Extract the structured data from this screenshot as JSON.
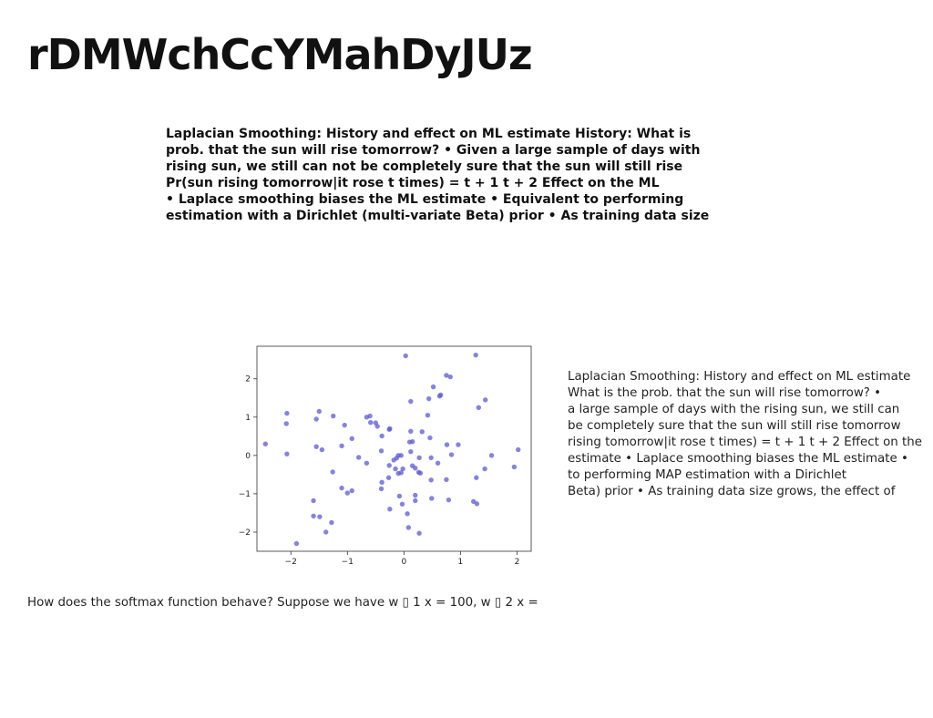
{
  "page": {
    "title": "rDMWchCcYMahDyJUz",
    "bold_lines": [
      "Laplacian Smoothing: History and effect on ML estimate History: What is",
      "prob. that the sun will rise tomorrow? • Given a large sample of days with",
      "rising sun, we still can not be completely sure that the sun will still rise",
      "Pr(sun rising tomorrow|it rose t times) = t + 1 t + 2 Effect on the ML",
      "• Laplace smoothing biases the ML estimate • Equivalent to performing",
      "estimation with a Dirichlet (multi-variate Beta) prior • As training data size"
    ],
    "side_lines": [
      "Laplacian Smoothing: History and effect on ML estimate",
      "What is the prob. that the sun will rise tomorrow? •",
      "a large sample of days with the rising sun, we still can",
      "be completely sure that the sun will still rise tomorrow",
      "rising tomorrow|it rose t times) = t + 1 t + 2 Effect on the",
      "estimate • Laplace smoothing biases the ML estimate •",
      "to performing MAP estimation with a Dirichlet",
      "Beta) prior • As training data size grows, the effect of"
    ],
    "bottom_text": "How does the softmax function behave? Suppose we have w ▯ 1 x = 100, w ▯ 2 x ="
  },
  "chart_data": {
    "type": "scatter",
    "title": "",
    "xlabel": "",
    "ylabel": "",
    "xlim": [
      -2.6,
      2.25
    ],
    "ylim": [
      -2.5,
      2.85
    ],
    "xticks": [
      "−2",
      "−1",
      "0",
      "1",
      "2"
    ],
    "yticks": [
      "−2",
      "−1",
      "0",
      "1",
      "2"
    ],
    "xtick_values": [
      -2,
      -1,
      0,
      1,
      2
    ],
    "ytick_values": [
      -2,
      -1,
      0,
      1,
      2
    ],
    "grid": false,
    "point_color": "#5b5bcf",
    "points": [
      [
        0.03,
        2.6
      ],
      [
        1.27,
        2.62
      ],
      [
        0.75,
        2.09
      ],
      [
        0.82,
        2.05
      ],
      [
        0.52,
        1.79
      ],
      [
        1.44,
        1.45
      ],
      [
        0.44,
        1.48
      ],
      [
        0.65,
        1.58
      ],
      [
        0.63,
        1.55
      ],
      [
        0.12,
        1.41
      ],
      [
        1.32,
        1.25
      ],
      [
        -2.07,
        1.1
      ],
      [
        -1.5,
        1.15
      ],
      [
        -1.25,
        1.03
      ],
      [
        -0.66,
        1.0
      ],
      [
        -0.6,
        1.03
      ],
      [
        -1.55,
        0.95
      ],
      [
        0.42,
        1.05
      ],
      [
        -2.08,
        0.83
      ],
      [
        -1.05,
        0.79
      ],
      [
        -0.59,
        0.86
      ],
      [
        -0.5,
        0.85
      ],
      [
        -0.47,
        0.76
      ],
      [
        -0.26,
        0.68
      ],
      [
        -0.25,
        0.7
      ],
      [
        0.12,
        0.63
      ],
      [
        0.32,
        0.62
      ],
      [
        -0.39,
        0.51
      ],
      [
        0.46,
        0.46
      ],
      [
        -0.92,
        0.44
      ],
      [
        0.1,
        0.35
      ],
      [
        0.15,
        0.36
      ],
      [
        0.76,
        0.28
      ],
      [
        0.96,
        0.28
      ],
      [
        -2.45,
        0.3
      ],
      [
        -1.1,
        0.25
      ],
      [
        -1.55,
        0.23
      ],
      [
        -1.45,
        0.15
      ],
      [
        -0.4,
        0.12
      ],
      [
        -2.07,
        0.04
      ],
      [
        0.12,
        0.1
      ],
      [
        0.84,
        0.02
      ],
      [
        1.55,
        0.0
      ],
      [
        2.02,
        0.15
      ],
      [
        -0.8,
        -0.05
      ],
      [
        -0.13,
        -0.07
      ],
      [
        -0.05,
        0.0
      ],
      [
        -0.1,
        0.0
      ],
      [
        0.27,
        -0.06
      ],
      [
        0.48,
        -0.06
      ],
      [
        -0.18,
        -0.12
      ],
      [
        -0.66,
        -0.2
      ],
      [
        0.6,
        -0.2
      ],
      [
        -0.26,
        -0.26
      ],
      [
        0.15,
        -0.27
      ],
      [
        0.2,
        -0.33
      ],
      [
        -0.15,
        -0.35
      ],
      [
        -0.02,
        -0.35
      ],
      [
        1.43,
        -0.35
      ],
      [
        1.95,
        -0.3
      ],
      [
        0.26,
        -0.44
      ],
      [
        0.29,
        -0.46
      ],
      [
        -0.05,
        -0.45
      ],
      [
        -0.1,
        -0.47
      ],
      [
        -0.27,
        -0.58
      ],
      [
        -1.26,
        -0.43
      ],
      [
        0.48,
        -0.64
      ],
      [
        0.75,
        -0.63
      ],
      [
        1.28,
        -0.58
      ],
      [
        -0.39,
        -0.7
      ],
      [
        -0.4,
        -0.87
      ],
      [
        -1.1,
        -0.85
      ],
      [
        -0.92,
        -0.92
      ],
      [
        -1.0,
        -0.98
      ],
      [
        0.2,
        -1.04
      ],
      [
        -0.08,
        -1.06
      ],
      [
        0.49,
        -1.12
      ],
      [
        0.2,
        -1.18
      ],
      [
        0.79,
        -1.16
      ],
      [
        1.23,
        -1.2
      ],
      [
        1.29,
        -1.26
      ],
      [
        -1.6,
        -1.18
      ],
      [
        -0.03,
        -1.27
      ],
      [
        -0.25,
        -1.4
      ],
      [
        0.06,
        -1.52
      ],
      [
        -1.6,
        -1.58
      ],
      [
        -1.49,
        -1.6
      ],
      [
        -1.28,
        -1.75
      ],
      [
        0.08,
        -1.88
      ],
      [
        -1.38,
        -2.0
      ],
      [
        0.27,
        -2.03
      ],
      [
        -1.9,
        -2.3
      ]
    ]
  }
}
